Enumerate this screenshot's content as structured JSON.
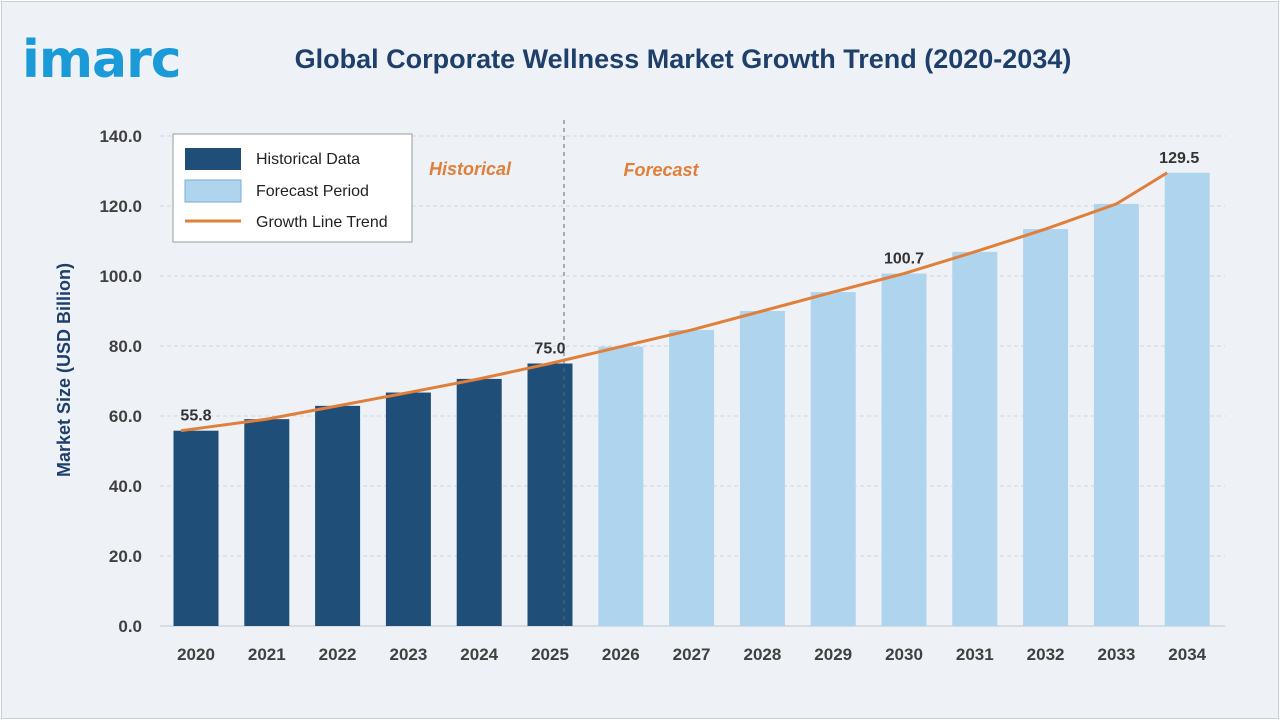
{
  "logo": "imarc",
  "chart_data": {
    "type": "bar",
    "title": "Global Corporate Wellness Market Growth Trend (2020-2034)",
    "ylabel": "Market Size (USD Billion)",
    "xlabel": "",
    "ylim": [
      0,
      140
    ],
    "yticks": [
      "0.0",
      "20.0",
      "40.0",
      "60.0",
      "80.0",
      "100.0",
      "120.0",
      "140.0"
    ],
    "grid": true,
    "legend_placement": "top-left",
    "categories": [
      "2020",
      "2021",
      "2022",
      "2023",
      "2024",
      "2025",
      "2026",
      "2027",
      "2028",
      "2029",
      "2030",
      "2031",
      "2032",
      "2033",
      "2034"
    ],
    "series": [
      {
        "name": "Historical Data",
        "color": "#1f4e79",
        "values": [
          55.8,
          59.1,
          62.9,
          66.7,
          70.6,
          75.0,
          null,
          null,
          null,
          null,
          null,
          null,
          null,
          null,
          null
        ]
      },
      {
        "name": "Forecast Period",
        "color": "#aed4ee",
        "values": [
          null,
          null,
          null,
          null,
          null,
          null,
          79.8,
          84.6,
          90.0,
          95.4,
          100.7,
          106.9,
          113.4,
          120.6,
          129.5
        ]
      },
      {
        "name": "Growth Line Trend",
        "type": "line",
        "color": "#e07f3a",
        "values": [
          55.8,
          59.1,
          62.9,
          66.7,
          70.6,
          75.0,
          79.8,
          84.6,
          90.0,
          95.4,
          100.7,
          106.9,
          113.4,
          120.6,
          129.5
        ]
      }
    ],
    "data_labels": [
      {
        "category": "2020",
        "text": "55.8"
      },
      {
        "category": "2025",
        "text": "75.0"
      },
      {
        "category": "2030",
        "text": "100.7"
      },
      {
        "category": "2034",
        "text": "129.5"
      }
    ],
    "annotations": {
      "historical": "Historical",
      "forecast": "Forecast"
    }
  }
}
